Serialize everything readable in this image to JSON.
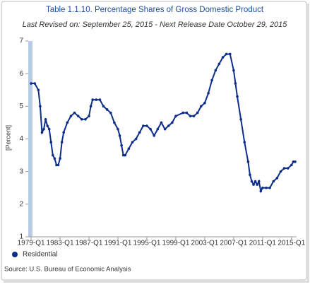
{
  "chart_data": {
    "type": "line",
    "title": "Table 1.1.10. Percentage Shares of Gross Domestic Product",
    "subtitle": "Last Revised on: September 25, 2015 - Next Release Date October 29, 2015",
    "ylabel": "[Percent]",
    "source": "Source: U.S. Bureau of Economic  Analysis",
    "x": [
      1979.0,
      1979.5,
      1980.0,
      1980.25,
      1980.5,
      1980.75,
      1981.0,
      1981.25,
      1981.5,
      1981.75,
      1982.0,
      1982.25,
      1982.5,
      1982.75,
      1983.0,
      1983.25,
      1983.5,
      1984.0,
      1984.5,
      1985.0,
      1985.5,
      1986.0,
      1986.5,
      1987.0,
      1987.25,
      1987.5,
      1988.0,
      1988.5,
      1989.0,
      1989.5,
      1990.0,
      1990.5,
      1991.0,
      1991.25,
      1991.5,
      1991.75,
      1992.0,
      1992.5,
      1993.0,
      1993.5,
      1994.0,
      1994.5,
      1995.0,
      1995.5,
      1996.0,
      1996.5,
      1997.0,
      1997.5,
      1998.0,
      1998.5,
      1999.0,
      2000.0,
      2000.5,
      2001.0,
      2001.5,
      2002.0,
      2002.5,
      2003.0,
      2003.5,
      2004.0,
      2004.5,
      2005.0,
      2005.5,
      2006.0,
      2006.5,
      2007.0,
      2007.25,
      2007.5,
      2008.0,
      2008.5,
      2009.0,
      2009.25,
      2009.5,
      2009.75,
      2010.0,
      2010.25,
      2010.5,
      2010.75,
      2011.0,
      2011.5,
      2012.0,
      2012.5,
      2013.0,
      2013.5,
      2014.0,
      2014.5,
      2015.0,
      2015.25,
      2015.5
    ],
    "series": [
      {
        "name": "Residential",
        "color": "#0d2d8a",
        "values": [
          5.7,
          5.7,
          5.5,
          5.0,
          4.2,
          4.3,
          4.6,
          4.4,
          4.3,
          3.9,
          3.5,
          3.4,
          3.2,
          3.2,
          3.4,
          3.9,
          4.2,
          4.5,
          4.7,
          4.8,
          4.7,
          4.6,
          4.6,
          4.7,
          5.0,
          5.2,
          5.2,
          5.2,
          5.0,
          4.9,
          4.8,
          4.5,
          4.3,
          4.1,
          3.8,
          3.5,
          3.5,
          3.7,
          3.9,
          4.0,
          4.2,
          4.4,
          4.4,
          4.3,
          4.1,
          4.3,
          4.5,
          4.3,
          4.4,
          4.5,
          4.7,
          4.8,
          4.8,
          4.7,
          4.7,
          4.8,
          5.0,
          5.1,
          5.4,
          5.8,
          6.1,
          6.3,
          6.5,
          6.6,
          6.6,
          6.1,
          5.7,
          5.3,
          4.6,
          3.9,
          3.3,
          2.9,
          2.7,
          2.6,
          2.7,
          2.6,
          2.7,
          2.4,
          2.5,
          2.5,
          2.5,
          2.7,
          2.8,
          3.0,
          3.1,
          3.1,
          3.2,
          3.3,
          3.3
        ]
      }
    ],
    "xlim": [
      1978.6,
      2015.7
    ],
    "xticks": [
      {
        "value": 1979,
        "label": "1979-Q1"
      },
      {
        "value": 1983,
        "label": "1983-Q1"
      },
      {
        "value": 1987,
        "label": "1987-Q1"
      },
      {
        "value": 1991,
        "label": "1991-Q1"
      },
      {
        "value": 1995,
        "label": "1995-Q1"
      },
      {
        "value": 1999,
        "label": "1999-Q1"
      },
      {
        "value": 2003,
        "label": "2003-Q1"
      },
      {
        "value": 2007,
        "label": "2007-Q1"
      },
      {
        "value": 2011,
        "label": "2011-Q1"
      },
      {
        "value": 2015,
        "label": "2015-Q1"
      }
    ],
    "ylim": [
      1,
      7
    ],
    "yticks": [
      1,
      2,
      3,
      4,
      5,
      6,
      7
    ],
    "grid": false
  }
}
